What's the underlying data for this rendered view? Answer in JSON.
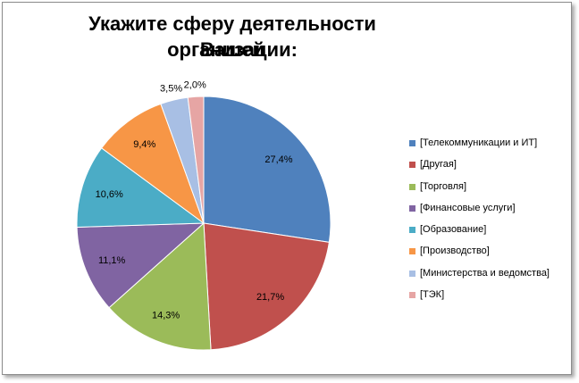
{
  "chart_data": {
    "type": "pie",
    "title_lines": [
      "Укажите сферу деятельности Вашей",
      "организации:"
    ],
    "categories": [
      "[Телекоммуникации и ИТ]",
      "[Другая]",
      "[Торговля]",
      "[Финансовые услуги]",
      "[Образование]",
      "[Производство]",
      "[Министерства и ведомства]",
      "[ТЭК]"
    ],
    "values": [
      27.4,
      21.7,
      14.3,
      11.1,
      10.6,
      9.4,
      3.5,
      2.0
    ],
    "data_labels": [
      "27,4%",
      "21,7%",
      "14,3%",
      "11,1%",
      "10,6%",
      "9,4%",
      "3,5%",
      "2,0%"
    ],
    "colors": [
      "#4F81BD",
      "#C0504D",
      "#9BBB59",
      "#8064A2",
      "#4BACC6",
      "#F79646",
      "#A8BFE4",
      "#E6A5A4"
    ],
    "start_angle_deg": 0,
    "direction": "clockwise",
    "legend_position": "right"
  }
}
